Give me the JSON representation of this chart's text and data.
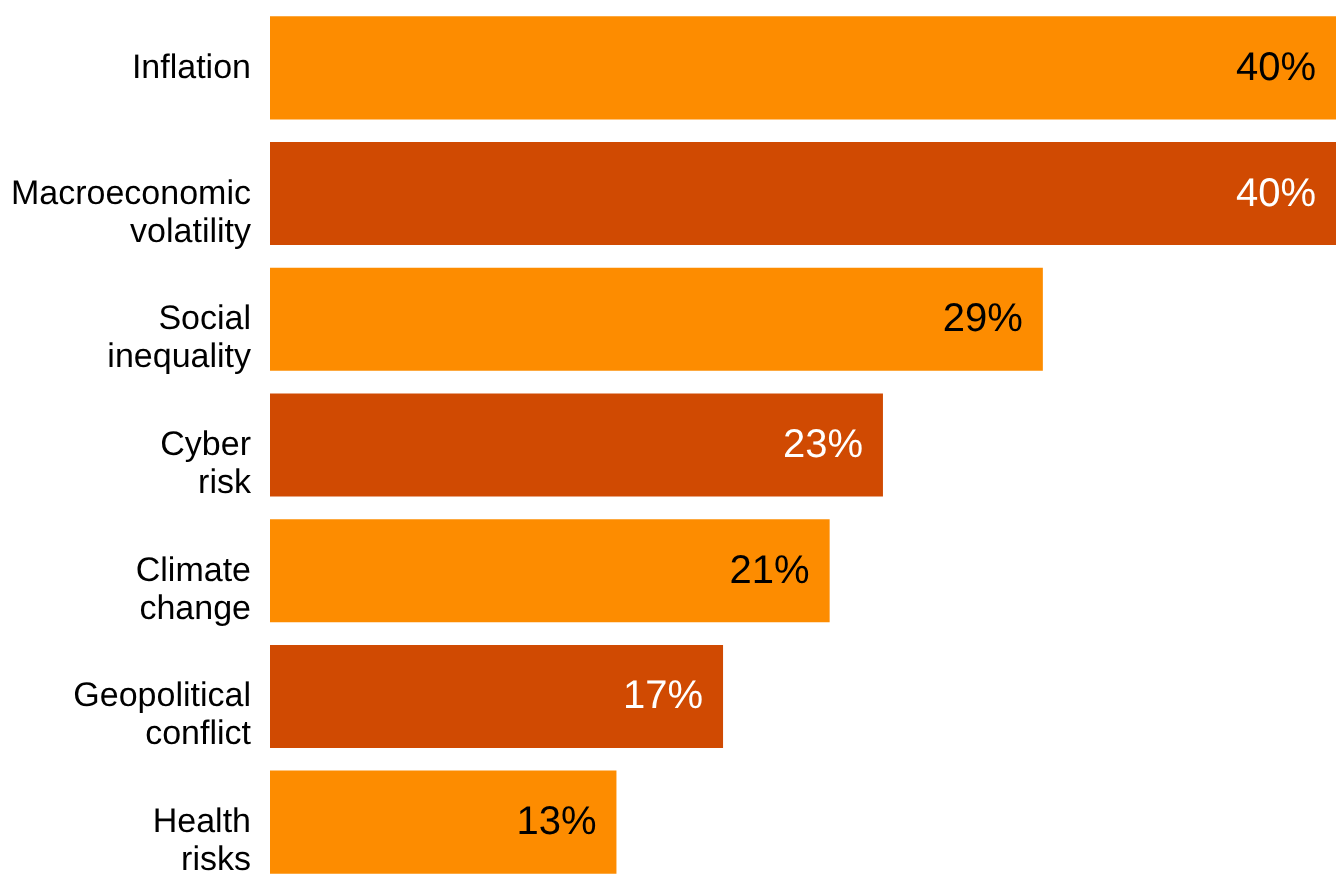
{
  "chart_data": {
    "type": "bar",
    "orientation": "horizontal",
    "categories": [
      "Inflation",
      "Macroeconomic volatility",
      "Social inequality",
      "Cyber risk",
      "Climate change",
      "Geopolitical conflict",
      "Health risks"
    ],
    "values": [
      40,
      40,
      29,
      23,
      21,
      17,
      13
    ],
    "colors": [
      "#fd8c00",
      "#d04a02",
      "#fd8c00",
      "#d04a02",
      "#fd8c00",
      "#d04a02",
      "#fd8c00"
    ],
    "value_labels": [
      "40%",
      "40%",
      "29%",
      "23%",
      "21%",
      "17%",
      "13%"
    ],
    "tick_labels": "y"
  }
}
